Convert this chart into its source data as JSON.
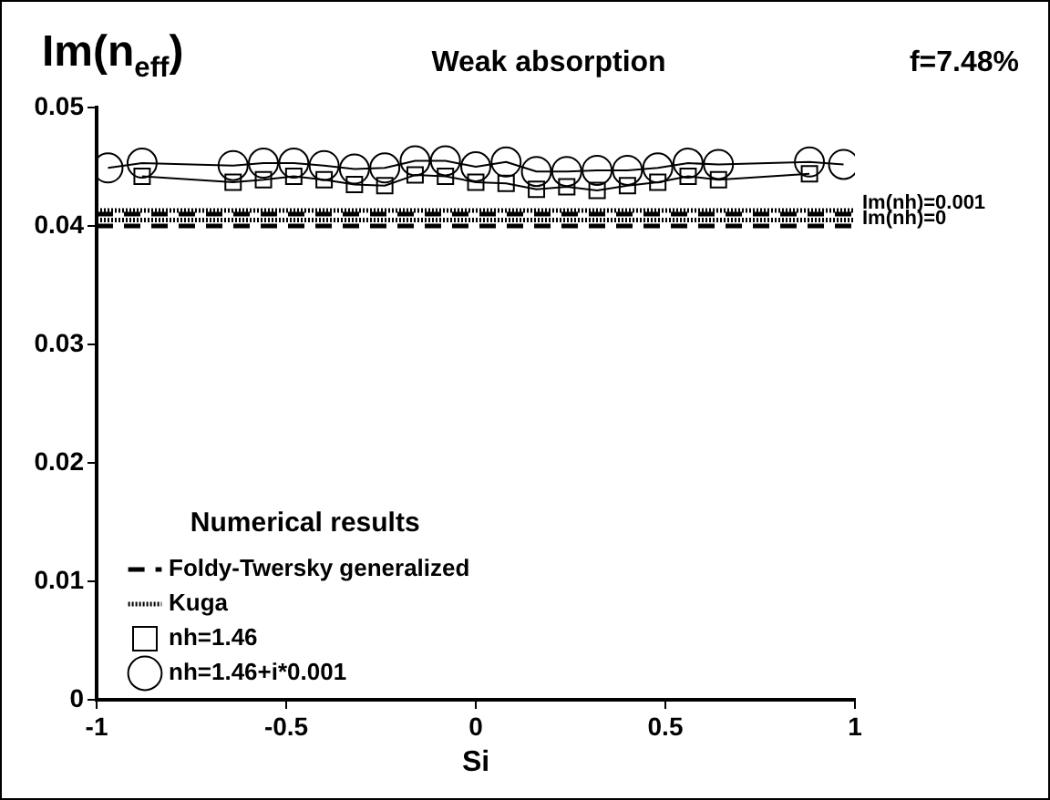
{
  "chart_data": {
    "type": "line",
    "title": "Weak absorption",
    "xlabel": "Si",
    "ylabel": "Im(n$_{eff}$)",
    "xlim": [
      -1,
      1
    ],
    "xticks": [
      -1,
      -0.5,
      0,
      0.5,
      1
    ],
    "ylim": [
      0,
      0.05
    ],
    "yticks": [
      0,
      0.01,
      0.02,
      0.03,
      0.04,
      0.05
    ],
    "grid": false,
    "legend": "bottom left",
    "legend_title": "Numerical results",
    "annotations": [
      "f=7.48%",
      {
        "text": "Im(nh)=0.001",
        "x": 1,
        "y": 0.0413
      },
      {
        "text": "Im(nh)=0",
        "x": 1,
        "y": 0.04
      }
    ],
    "series": [
      {
        "name": "Foldy-Twersky generalized",
        "color": "#000000",
        "line_style": "dashed",
        "marker": "none",
        "x": [
          -1,
          1
        ],
        "values": [
          0.041,
          0.041
        ]
      },
      {
        "color": "#000000",
        "line_style": "dashed",
        "marker": "none",
        "x": [
          -1,
          1
        ],
        "values": [
          0.04,
          0.04
        ]
      },
      {
        "name": "Kuga",
        "color": "#000000",
        "line_style": "dotted",
        "marker": "none",
        "x": [
          -1,
          1
        ],
        "values": [
          0.0413,
          0.0413
        ]
      },
      {
        "color": "#000000",
        "line_style": "dotted",
        "marker": "none",
        "x": [
          -1,
          1
        ],
        "values": [
          0.0405,
          0.0405
        ]
      },
      {
        "name": "nh=1.46",
        "color": "#000000",
        "line_style": "solid",
        "marker": "square",
        "x": [
          -0.88,
          -0.64,
          -0.56,
          -0.48,
          -0.4,
          -0.32,
          -0.24,
          -0.16,
          -0.08,
          0,
          0.08,
          0.16,
          0.24,
          0.32,
          0.4,
          0.48,
          0.56,
          0.64,
          0.88
        ],
        "values": [
          0.0442,
          0.0437,
          0.0439,
          0.0442,
          0.0439,
          0.0435,
          0.0434,
          0.0443,
          0.0442,
          0.0437,
          0.0436,
          0.0431,
          0.0433,
          0.043,
          0.0434,
          0.0437,
          0.0442,
          0.0439,
          0.0444
        ]
      },
      {
        "name": "nh=1.46+i*0.001",
        "color": "#000000",
        "line_style": "solid",
        "marker": "circle",
        "x": [
          -0.97,
          -0.88,
          -0.64,
          -0.56,
          -0.48,
          -0.4,
          -0.32,
          -0.24,
          -0.16,
          -0.08,
          0,
          0.08,
          0.16,
          0.24,
          0.32,
          0.4,
          0.48,
          0.56,
          0.64,
          0.88,
          0.97
        ],
        "values": [
          0.0449,
          0.0453,
          0.0451,
          0.0453,
          0.0453,
          0.0451,
          0.0448,
          0.0449,
          0.0455,
          0.0455,
          0.045,
          0.0454,
          0.0446,
          0.0446,
          0.0447,
          0.0447,
          0.0449,
          0.0453,
          0.0452,
          0.0454,
          0.0452
        ]
      }
    ]
  }
}
